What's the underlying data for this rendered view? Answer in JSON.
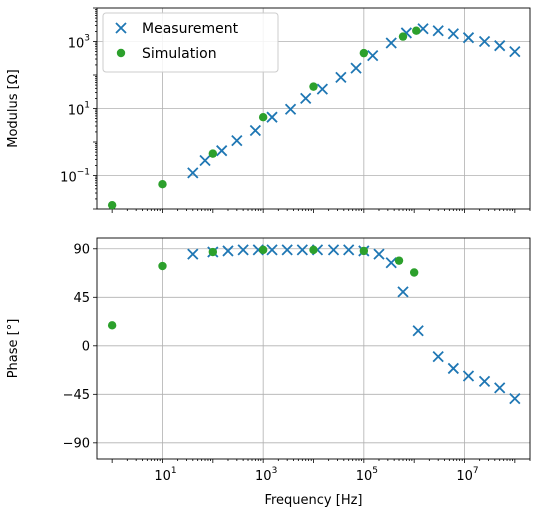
{
  "chart_data": [
    {
      "type": "scatter",
      "xscale": "log",
      "yscale": "log",
      "xlim": [
        0.5,
        200000000
      ],
      "ylim": [
        0.01,
        10000
      ],
      "grid": true,
      "ylabel": "Modulus [Ω]",
      "yticks": [
        {
          "value": 0.1,
          "base": "10",
          "exp": "−1"
        },
        {
          "value": 10,
          "base": "10",
          "exp": "1"
        },
        {
          "value": 1000,
          "base": "10",
          "exp": "3"
        }
      ],
      "legend": {
        "placement": "upper-left",
        "entries": [
          {
            "label": "Measurement",
            "marker": "x"
          },
          {
            "label": "Simulation",
            "marker": "o"
          }
        ]
      },
      "series": [
        {
          "name": "Measurement",
          "color": "#1f77b4",
          "marker": "x",
          "points": [
            [
              40,
              0.12
            ],
            [
              70,
              0.28
            ],
            [
              150,
              0.55
            ],
            [
              300,
              1.1
            ],
            [
              700,
              2.2
            ],
            [
              1500,
              5.5
            ],
            [
              3500,
              9.5
            ],
            [
              7000,
              20
            ],
            [
              15000,
              38
            ],
            [
              35000,
              85
            ],
            [
              70000,
              160
            ],
            [
              150000,
              380
            ],
            [
              350000,
              900
            ],
            [
              700000,
              1800
            ],
            [
              1500000,
              2400
            ],
            [
              3000000,
              2100
            ],
            [
              6000000,
              1700
            ],
            [
              12000000,
              1300
            ],
            [
              25000000,
              1000
            ],
            [
              50000000,
              750
            ],
            [
              100000000,
              500
            ]
          ]
        },
        {
          "name": "Simulation",
          "color": "#2ca02c",
          "marker": "o",
          "points": [
            [
              1,
              0.013
            ],
            [
              10,
              0.055
            ],
            [
              100,
              0.45
            ],
            [
              1000,
              5.5
            ],
            [
              10000,
              45
            ],
            [
              100000,
              450
            ],
            [
              600000,
              1400
            ],
            [
              1100000,
              2100
            ]
          ]
        }
      ]
    },
    {
      "type": "scatter",
      "xscale": "log",
      "xlim": [
        0.5,
        200000000
      ],
      "ylim": [
        -105,
        100
      ],
      "grid": true,
      "ylabel": "Phase [°]",
      "xlabel": "Frequency [Hz]",
      "yticks": [
        {
          "value": 90,
          "label": "90"
        },
        {
          "value": 45,
          "label": "45"
        },
        {
          "value": 0,
          "label": "0"
        },
        {
          "value": -45,
          "label": "−45"
        },
        {
          "value": -90,
          "label": "−90"
        }
      ],
      "xticks": [
        {
          "value": 10,
          "base": "10",
          "exp": "1"
        },
        {
          "value": 1000,
          "base": "10",
          "exp": "3"
        },
        {
          "value": 100000,
          "base": "10",
          "exp": "5"
        },
        {
          "value": 10000000,
          "base": "10",
          "exp": "7"
        }
      ],
      "series": [
        {
          "name": "Measurement",
          "color": "#1f77b4",
          "marker": "x",
          "points": [
            [
              40,
              85
            ],
            [
              100,
              87
            ],
            [
              200,
              88
            ],
            [
              400,
              89
            ],
            [
              800,
              89
            ],
            [
              1500,
              89
            ],
            [
              3000,
              89
            ],
            [
              6000,
              89
            ],
            [
              12000,
              89
            ],
            [
              25000,
              89
            ],
            [
              50000,
              89
            ],
            [
              100000,
              88
            ],
            [
              200000,
              85
            ],
            [
              350000,
              77
            ],
            [
              600000,
              50
            ],
            [
              1200000,
              14
            ],
            [
              3000000,
              -10
            ],
            [
              6000000,
              -21
            ],
            [
              12000000,
              -28
            ],
            [
              25000000,
              -33
            ],
            [
              50000000,
              -39
            ],
            [
              100000000,
              -49
            ]
          ]
        },
        {
          "name": "Simulation",
          "color": "#2ca02c",
          "marker": "o",
          "points": [
            [
              1,
              19
            ],
            [
              10,
              74
            ],
            [
              100,
              87
            ],
            [
              1000,
              89
            ],
            [
              10000,
              89
            ],
            [
              100000,
              88
            ],
            [
              500000,
              79
            ],
            [
              1000000,
              68
            ]
          ]
        }
      ]
    }
  ]
}
